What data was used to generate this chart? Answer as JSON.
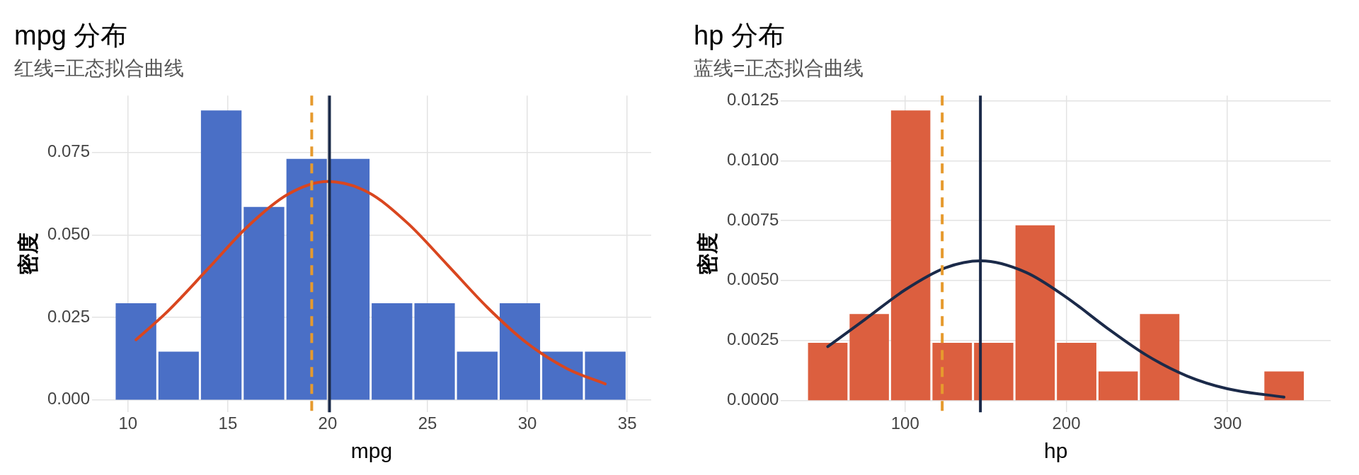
{
  "chart_data": [
    {
      "type": "histogram",
      "title": "mpg 分布",
      "subtitle": "红线=正态拟合曲线",
      "xlabel": "mpg",
      "ylabel": "密度",
      "color": "#4a6fc6",
      "bins": [
        9.33,
        11.47,
        13.6,
        15.74,
        17.88,
        20.01,
        22.15,
        24.29,
        26.42,
        28.56,
        30.69,
        32.83,
        34.97
      ],
      "values": [
        0.0293,
        0.0146,
        0.0878,
        0.0585,
        0.0731,
        0.0731,
        0.0293,
        0.0293,
        0.0146,
        0.0293,
        0.0146,
        0.0146
      ],
      "series": [
        {
          "type": "line",
          "color": "#d9461f",
          "x": [
            10.4,
            12,
            14,
            16,
            18,
            20,
            22,
            24,
            26,
            28,
            30,
            32,
            33.9
          ],
          "values": [
            0.0182,
            0.0269,
            0.0397,
            0.0526,
            0.0623,
            0.0662,
            0.063,
            0.0536,
            0.0409,
            0.028,
            0.0171,
            0.0094,
            0.0048
          ]
        }
      ],
      "ref_lines": [
        {
          "axis": "x",
          "value": 19.2,
          "color": "#e69a2e",
          "line_style": "dashed"
        },
        {
          "axis": "x",
          "value": 20.09,
          "color": "#1b2a49",
          "line_style": "solid"
        }
      ],
      "xlim": [
        8.2,
        36.2
      ],
      "xticks": [
        10,
        15,
        20,
        25,
        30,
        35
      ],
      "ylim": [
        -0.0038,
        0.0923
      ],
      "yticks": [
        {
          "value": 0,
          "label": "0.000"
        },
        {
          "value": 0.025,
          "label": "0.025"
        },
        {
          "value": 0.05,
          "label": "0.050"
        },
        {
          "value": 0.075,
          "label": "0.075"
        }
      ],
      "grid": true,
      "legend": false
    },
    {
      "type": "histogram",
      "title": "hp 分布",
      "subtitle": "蓝线=正态拟合曲线",
      "xlabel": "hp",
      "ylabel": "密度",
      "color": "#dc5f3f",
      "bins": [
        39.1,
        64.9,
        90.6,
        116.3,
        142.1,
        167.8,
        193.5,
        219.3,
        245,
        270.8,
        296.5,
        322.2,
        348
      ],
      "values": [
        0.0024,
        0.0036,
        0.0121,
        0.0024,
        0.0024,
        0.0073,
        0.0024,
        0.0012,
        0.0036,
        0,
        0,
        0.0012
      ],
      "series": [
        {
          "type": "line",
          "color": "#1b2a49",
          "x": [
            52,
            75,
            100,
            125,
            147,
            175,
            200,
            225,
            250,
            275,
            300,
            335
          ],
          "values": [
            0.00224,
            0.00337,
            0.00461,
            0.00553,
            0.00582,
            0.00534,
            0.0043,
            0.00303,
            0.00187,
            0.00101,
            0.00048,
            0.00013
          ]
        }
      ],
      "ref_lines": [
        {
          "axis": "x",
          "value": 123,
          "color": "#e69a2e",
          "line_style": "dashed"
        },
        {
          "axis": "x",
          "value": 146.7,
          "color": "#1b2a49",
          "line_style": "solid"
        }
      ],
      "xlim": [
        23,
        364
      ],
      "xticks": [
        100,
        200,
        300
      ],
      "ylim": [
        -0.0005,
        0.01272
      ],
      "yticks": [
        {
          "value": 0,
          "label": "0.0000"
        },
        {
          "value": 0.0025,
          "label": "0.0025"
        },
        {
          "value": 0.005,
          "label": "0.0050"
        },
        {
          "value": 0.0075,
          "label": "0.0075"
        },
        {
          "value": 0.01,
          "label": "0.0100"
        },
        {
          "value": 0.0125,
          "label": "0.0125"
        }
      ],
      "grid": true,
      "legend": false
    }
  ]
}
